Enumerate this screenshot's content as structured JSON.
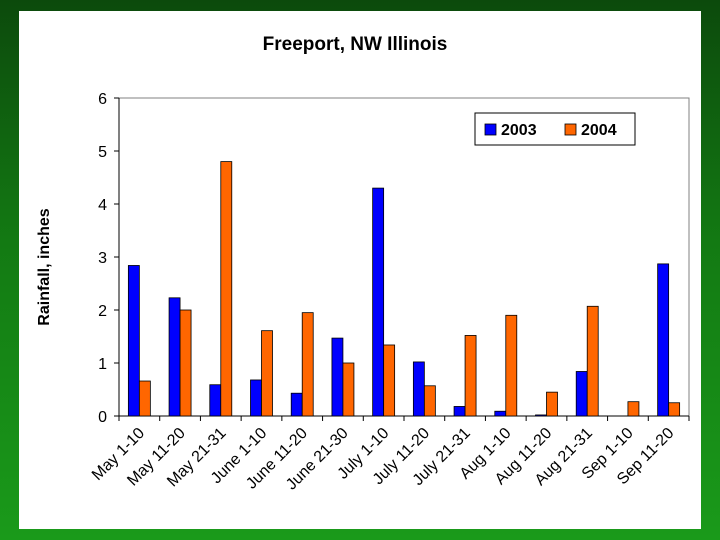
{
  "chart_data": {
    "type": "bar",
    "title": "Freeport, NW Illinois",
    "xlabel": "",
    "ylabel": "Rainfall, inches",
    "ylim": [
      0,
      6
    ],
    "yticks": [
      "0",
      "1",
      "2",
      "3",
      "4",
      "5",
      "6"
    ],
    "grid": false,
    "legend_position": "top-right",
    "categories": [
      "May 1-10",
      "May 11-20",
      "May 21-31",
      "June 1-10",
      "June 11-20",
      "June 21-30",
      "July 1-10",
      "July 11-20",
      "July 21-31",
      "Aug 1-10",
      "Aug 11-20",
      "Aug 21-31",
      "Sep 1-10",
      "Sep 11-20"
    ],
    "series": [
      {
        "name": "2003",
        "color": "#0000ff",
        "values": [
          2.84,
          2.23,
          0.59,
          0.68,
          0.43,
          1.47,
          4.3,
          1.02,
          0.18,
          0.09,
          0.02,
          0.84,
          0.0,
          2.87
        ]
      },
      {
        "name": "2004",
        "color": "#ff6600",
        "values": [
          0.66,
          2.0,
          4.8,
          1.61,
          1.95,
          1.0,
          1.34,
          0.57,
          1.52,
          1.9,
          0.45,
          2.07,
          0.27,
          0.25
        ]
      }
    ]
  }
}
